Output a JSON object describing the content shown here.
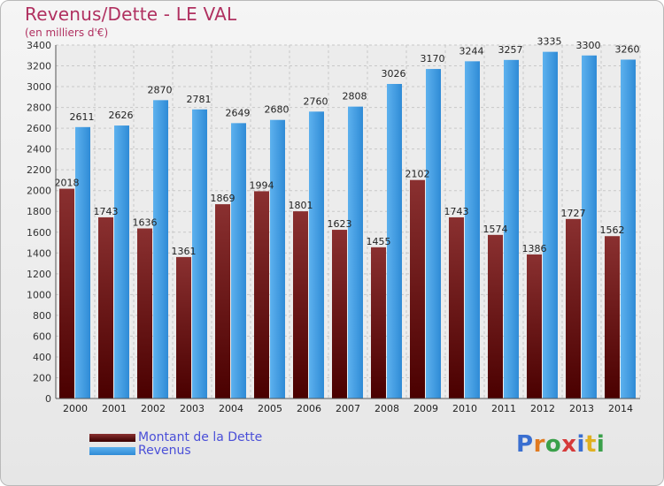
{
  "title": "Revenus/Dette - LE VAL",
  "subtitle": "(en milliers d'€)",
  "chart_data": {
    "type": "bar",
    "categories": [
      "2000",
      "2001",
      "2002",
      "2003",
      "2004",
      "2005",
      "2006",
      "2007",
      "2008",
      "2009",
      "2010",
      "2011",
      "2012",
      "2013",
      "2014"
    ],
    "series": [
      {
        "name": "Montant de la Dette",
        "color": "#7a1c1c",
        "values": [
          2018,
          1743,
          1636,
          1361,
          1869,
          1994,
          1801,
          1623,
          1455,
          2102,
          1743,
          1574,
          1386,
          1727,
          1562
        ],
        "labels": [
          "2018",
          "1743",
          "1636",
          "1361",
          "1869",
          "1994",
          "1801",
          "1623",
          "1455",
          "2102",
          "1743",
          "1574",
          "1386",
          "1727",
          "1562"
        ]
      },
      {
        "name": "Revenus",
        "color": "#3a95dc",
        "values": [
          2611,
          2626,
          2870,
          2781,
          2649,
          2680,
          2760,
          2808,
          3026,
          3170,
          3244,
          3257,
          3335,
          3300,
          3260
        ],
        "labels": [
          "2611",
          "2626",
          "2870",
          "2781",
          "2649",
          "2680",
          "2760",
          "2808",
          "3026",
          "3170",
          "3244",
          "3257",
          "3335",
          "3300",
          "3260"
        ]
      }
    ],
    "ylim": [
      0,
      3400
    ],
    "yticks": [
      0,
      200,
      400,
      600,
      800,
      1000,
      1200,
      1400,
      1600,
      1800,
      2000,
      2200,
      2400,
      2600,
      2800,
      3000,
      3200,
      3400
    ],
    "grid": true,
    "legend": "bottom-left"
  },
  "legend": {
    "items": [
      {
        "label": "Montant de la Dette",
        "color": "#5a0c0c"
      },
      {
        "label": "Revenus",
        "color": "#3a95dc"
      }
    ]
  },
  "logo": {
    "letters": [
      "P",
      "r",
      "o",
      "x",
      "i",
      "t",
      "i"
    ],
    "colors": [
      "#3a6fd0",
      "#e07a20",
      "#3aa04a",
      "#d63a3a",
      "#3a6fd0",
      "#e0b020",
      "#3aa04a"
    ]
  }
}
